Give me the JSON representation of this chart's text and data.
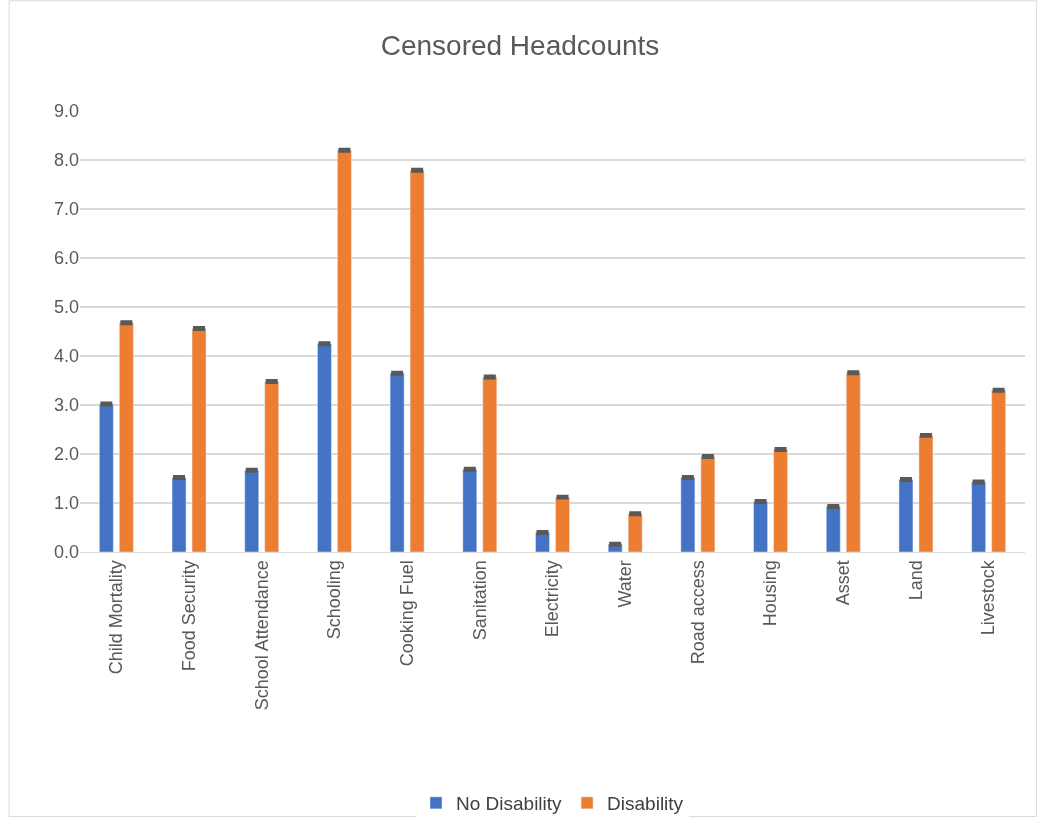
{
  "chart_data": {
    "type": "bar",
    "title": "Censored Headcounts",
    "categories": [
      "Child Mortality",
      "Food Security",
      "School Attendance",
      "Schooling",
      "Cooking Fuel",
      "Sanitation",
      "Electricity",
      "Water",
      "Road access",
      "Housing",
      "Asset",
      "Land",
      "Livestock"
    ],
    "series": [
      {
        "name": "No Disability",
        "color": "#4472c4",
        "values": [
          3.02,
          1.52,
          1.67,
          4.25,
          3.65,
          1.69,
          0.4,
          0.16,
          1.52,
          1.03,
          0.93,
          1.48,
          1.43
        ],
        "errors": [
          0.02,
          0.02,
          0.02,
          0.02,
          0.02,
          0.02,
          0.02,
          0.02,
          0.02,
          0.02,
          0.02,
          0.02,
          0.02
        ]
      },
      {
        "name": "Disability",
        "color": "#ed7d31",
        "values": [
          4.68,
          4.56,
          3.48,
          8.2,
          7.79,
          3.57,
          1.12,
          0.78,
          1.95,
          2.09,
          3.66,
          2.38,
          3.3
        ],
        "errors": [
          0.02,
          0.02,
          0.02,
          0.02,
          0.02,
          0.02,
          0.02,
          0.02,
          0.02,
          0.02,
          0.02,
          0.02,
          0.02
        ]
      }
    ],
    "ylim": [
      0,
      9
    ],
    "yticks": [
      {
        "value": 0,
        "label": "0.0"
      },
      {
        "value": 1,
        "label": "1.0"
      },
      {
        "value": 2,
        "label": "2.0"
      },
      {
        "value": 3,
        "label": "3.0"
      },
      {
        "value": 4,
        "label": "4.0"
      },
      {
        "value": 5,
        "label": "5.0"
      },
      {
        "value": 6,
        "label": "6.0"
      },
      {
        "value": 7,
        "label": "7.0"
      },
      {
        "value": 8,
        "label": "8.0"
      },
      {
        "value": 9,
        "label": "9.0"
      }
    ],
    "grid": "y",
    "legend": "bottom"
  }
}
